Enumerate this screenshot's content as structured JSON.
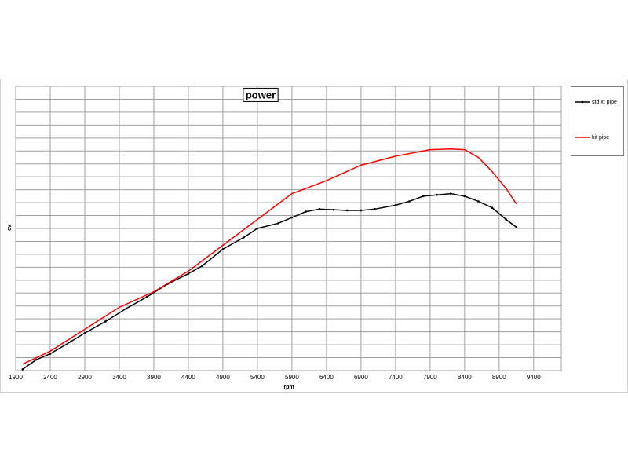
{
  "chart_data": {
    "type": "line",
    "title": "power",
    "x_label": "rpm",
    "y_label": "cv",
    "xlim": [
      1900,
      9800
    ],
    "xticks": [
      1900,
      2400,
      2900,
      3400,
      3900,
      4400,
      4900,
      5400,
      5900,
      6400,
      6900,
      7400,
      7900,
      8400,
      8900,
      9400
    ],
    "ylim": [
      0,
      22
    ],
    "yticks": [
      0,
      1,
      2,
      3,
      4,
      5,
      6,
      7,
      8,
      9,
      10,
      11,
      12,
      13,
      14,
      15,
      16,
      17,
      18,
      19,
      20,
      21,
      22
    ],
    "show_ytick_labels": false,
    "grid": true,
    "legend": "right",
    "series": [
      {
        "name": "std xt pipe",
        "color": "#000000",
        "markers": true,
        "x": [
          2000,
          2200,
          2400,
          2700,
          2900,
          3200,
          3500,
          3800,
          4100,
          4400,
          4600,
          4900,
          5200,
          5400,
          5700,
          5900,
          6100,
          6300,
          6500,
          6700,
          6900,
          7100,
          7400,
          7600,
          7800,
          8000,
          8200,
          8400,
          8600,
          8800,
          9000,
          9150
        ],
        "values": [
          0.1,
          0.85,
          1.3,
          2.25,
          2.9,
          3.8,
          4.8,
          5.7,
          6.7,
          7.5,
          8.1,
          9.4,
          10.3,
          11,
          11.4,
          11.85,
          12.3,
          12.5,
          12.45,
          12.4,
          12.4,
          12.5,
          12.8,
          13.1,
          13.5,
          13.6,
          13.7,
          13.5,
          13.1,
          12.6,
          11.7,
          11.1
        ]
      },
      {
        "name": "kit pipe",
        "color": "#ff0000",
        "markers": false,
        "x": [
          2000,
          2400,
          2900,
          3400,
          3900,
          4400,
          4900,
          5400,
          5900,
          6400,
          6900,
          7400,
          7900,
          8200,
          8400,
          8600,
          8800,
          9000,
          9150
        ],
        "values": [
          0.5,
          1.5,
          3.2,
          4.9,
          6.1,
          7.7,
          9.7,
          11.7,
          13.7,
          14.7,
          15.9,
          16.6,
          17.1,
          17.15,
          17.1,
          16.5,
          15.4,
          14.1,
          12.9
        ]
      }
    ]
  }
}
